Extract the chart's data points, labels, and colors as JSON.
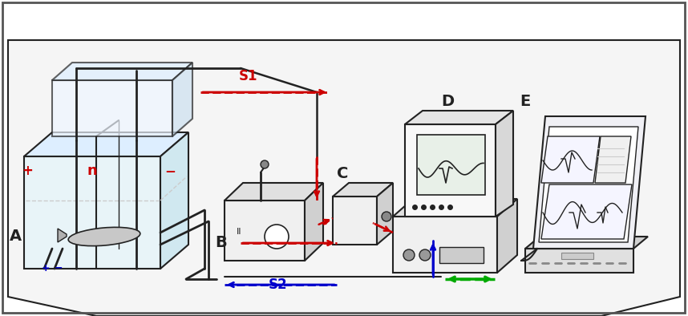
{
  "bg_color": "#ffffff",
  "border_color": "#333333",
  "label_A": "A",
  "label_B": "B",
  "label_C": "C",
  "label_D": "D",
  "label_E": "E",
  "label_S1": "S1",
  "label_S2": "S2",
  "label_n": "n",
  "label_plus_red": "+",
  "label_minus_red": "−",
  "label_plus_blue": "+",
  "label_minus_blue": "−",
  "red_color": "#cc0000",
  "blue_color": "#0000cc",
  "green_color": "#00aa00",
  "dark_color": "#222222",
  "gray_color": "#888888",
  "light_gray": "#cccccc",
  "tank_color": "#dddddd",
  "figsize": [
    8.58,
    3.94
  ],
  "dpi": 100
}
